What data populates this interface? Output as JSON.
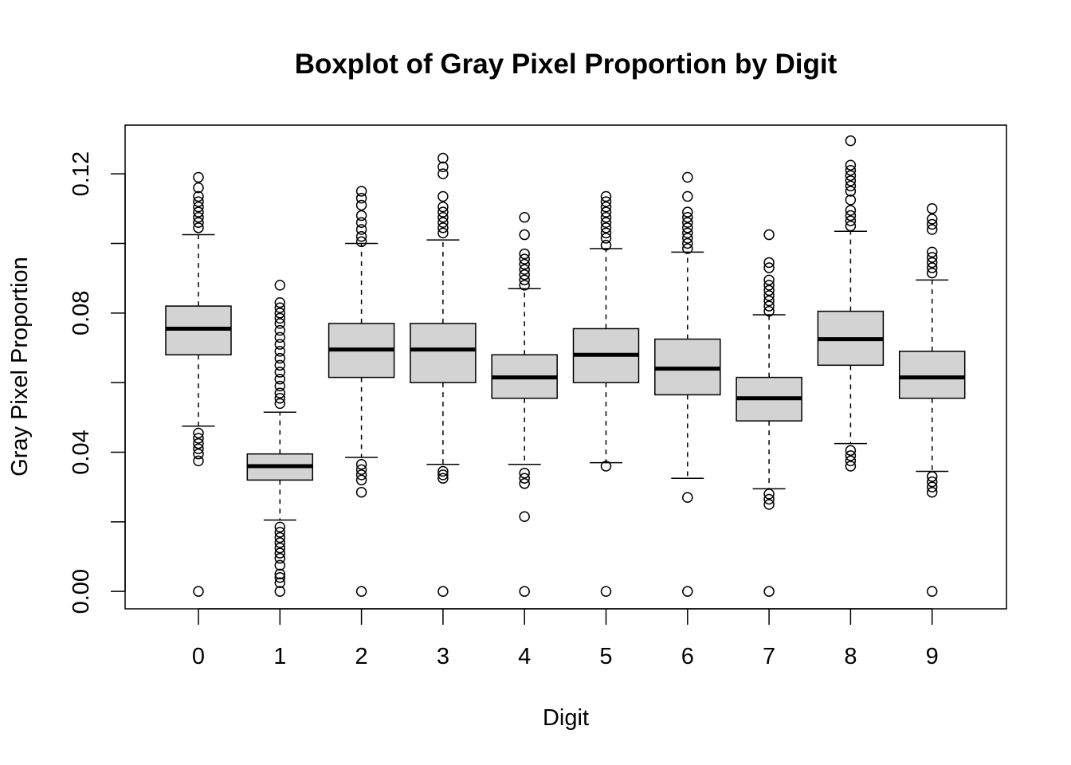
{
  "chart_data": {
    "type": "boxplot",
    "title": "Boxplot of Gray Pixel Proportion by Digit",
    "xlabel": "Digit",
    "ylabel": "Gray Pixel Proportion",
    "ylim": [
      -0.005,
      0.134
    ],
    "yticks": [
      "0.00",
      "0.04",
      "0.08",
      "0.12"
    ],
    "ytick_values": [
      0,
      0.04,
      0.08,
      0.12
    ],
    "grid": false,
    "box_fill": "#d3d3d3",
    "categories": [
      "0",
      "1",
      "2",
      "3",
      "4",
      "5",
      "6",
      "7",
      "8",
      "9"
    ],
    "boxes": [
      {
        "category": "0",
        "whisker_low": 0.0475,
        "q1": 0.068,
        "median": 0.0755,
        "q3": 0.082,
        "whisker_high": 0.1025,
        "outliers": [
          0.119,
          0.116,
          0.1135,
          0.112,
          0.1105,
          0.109,
          0.1075,
          0.106,
          0.1045,
          0.0455,
          0.044,
          0.0425,
          0.041,
          0.0395,
          0.0375,
          0.0
        ]
      },
      {
        "category": "1",
        "whisker_low": 0.0205,
        "q1": 0.032,
        "median": 0.036,
        "q3": 0.0395,
        "whisker_high": 0.0515,
        "outliers": [
          0.088,
          0.083,
          0.0815,
          0.08,
          0.0785,
          0.077,
          0.075,
          0.073,
          0.071,
          0.069,
          0.067,
          0.065,
          0.063,
          0.061,
          0.059,
          0.057,
          0.0555,
          0.054,
          0.0185,
          0.017,
          0.0155,
          0.014,
          0.0125,
          0.011,
          0.0095,
          0.0075,
          0.005,
          0.004,
          0.0025,
          0.0
        ]
      },
      {
        "category": "2",
        "whisker_low": 0.0385,
        "q1": 0.0615,
        "median": 0.0695,
        "q3": 0.077,
        "whisker_high": 0.1,
        "outliers": [
          0.115,
          0.113,
          0.111,
          0.108,
          0.106,
          0.104,
          0.102,
          0.1005,
          0.0365,
          0.035,
          0.0335,
          0.032,
          0.0285,
          0.0
        ]
      },
      {
        "category": "3",
        "whisker_low": 0.0365,
        "q1": 0.06,
        "median": 0.0695,
        "q3": 0.077,
        "whisker_high": 0.101,
        "outliers": [
          0.1245,
          0.122,
          0.12,
          0.1135,
          0.1105,
          0.109,
          0.1075,
          0.106,
          0.1045,
          0.103,
          0.0345,
          0.0335,
          0.0325,
          0.0
        ]
      },
      {
        "category": "4",
        "whisker_low": 0.0365,
        "q1": 0.0555,
        "median": 0.0615,
        "q3": 0.068,
        "whisker_high": 0.087,
        "outliers": [
          0.1075,
          0.1025,
          0.097,
          0.0955,
          0.094,
          0.0925,
          0.091,
          0.0895,
          0.088,
          0.034,
          0.0325,
          0.031,
          0.0215,
          0.0
        ]
      },
      {
        "category": "5",
        "whisker_low": 0.037,
        "q1": 0.06,
        "median": 0.068,
        "q3": 0.0755,
        "whisker_high": 0.0985,
        "outliers": [
          0.1135,
          0.112,
          0.1105,
          0.109,
          0.1075,
          0.106,
          0.1045,
          0.103,
          0.1015,
          0.0995,
          0.036,
          0.0
        ]
      },
      {
        "category": "6",
        "whisker_low": 0.0325,
        "q1": 0.0565,
        "median": 0.064,
        "q3": 0.0725,
        "whisker_high": 0.0975,
        "outliers": [
          0.119,
          0.1135,
          0.109,
          0.1075,
          0.106,
          0.1045,
          0.103,
          0.1015,
          0.1,
          0.0985,
          0.027,
          0.0
        ]
      },
      {
        "category": "7",
        "whisker_low": 0.0295,
        "q1": 0.049,
        "median": 0.0555,
        "q3": 0.0615,
        "whisker_high": 0.0795,
        "outliers": [
          0.1025,
          0.0945,
          0.093,
          0.0895,
          0.088,
          0.0865,
          0.085,
          0.0835,
          0.082,
          0.0805,
          0.028,
          0.0265,
          0.025,
          0.0
        ]
      },
      {
        "category": "8",
        "whisker_low": 0.0425,
        "q1": 0.065,
        "median": 0.0725,
        "q3": 0.0805,
        "whisker_high": 0.1035,
        "outliers": [
          0.1295,
          0.1225,
          0.121,
          0.1195,
          0.118,
          0.1165,
          0.115,
          0.1125,
          0.1095,
          0.108,
          0.1065,
          0.105,
          0.0405,
          0.039,
          0.0375,
          0.036
        ]
      },
      {
        "category": "9",
        "whisker_low": 0.0345,
        "q1": 0.0555,
        "median": 0.0615,
        "q3": 0.069,
        "whisker_high": 0.0895,
        "outliers": [
          0.11,
          0.107,
          0.1055,
          0.104,
          0.0975,
          0.096,
          0.0945,
          0.093,
          0.0915,
          0.033,
          0.0315,
          0.03,
          0.0285,
          0.0
        ]
      }
    ]
  }
}
